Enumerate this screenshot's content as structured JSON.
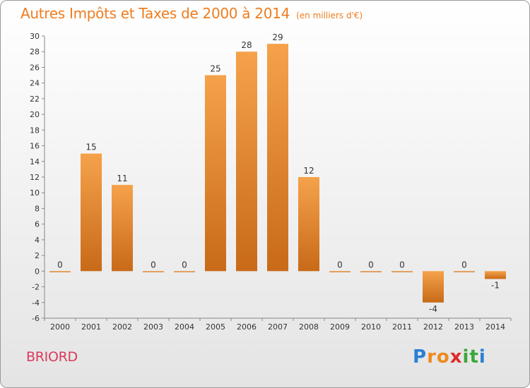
{
  "header": {
    "title": "Autres Impôts et Taxes de 2000 à 2014",
    "unit": "(en milliers d'€)"
  },
  "commune": "BRIORD",
  "logo": {
    "letters": [
      "P",
      "r",
      "o",
      "x",
      "i",
      "t",
      "i"
    ],
    "colors": [
      "#2a7fd4",
      "#ef8a1c",
      "#ef8a1c",
      "#e02a2a",
      "#3aa83a",
      "#3aa83a",
      "#2a7fd4"
    ]
  },
  "chart_data": {
    "type": "bar",
    "title": "Autres Impôts et Taxes de 2000 à 2014",
    "subtitle": "(en milliers d'€)",
    "categories": [
      "2000",
      "2001",
      "2002",
      "2003",
      "2004",
      "2005",
      "2006",
      "2007",
      "2008",
      "2009",
      "2010",
      "2011",
      "2012",
      "2013",
      "2014"
    ],
    "values": [
      0,
      15,
      11,
      0,
      0,
      25,
      28,
      29,
      12,
      0,
      0,
      0,
      -4,
      0,
      -1
    ],
    "ylim": [
      -6,
      30
    ],
    "yticks": [
      -6,
      -4,
      -2,
      0,
      2,
      4,
      6,
      8,
      10,
      12,
      14,
      16,
      18,
      20,
      22,
      24,
      26,
      28,
      30
    ],
    "grid": false,
    "colors": {
      "bar_top": "#f5a24b",
      "bar_bottom": "#c86a18",
      "axis": "#888888"
    }
  }
}
